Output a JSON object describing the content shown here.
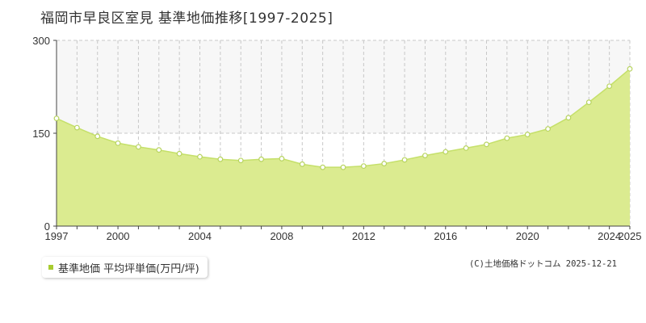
{
  "title": "福岡市早良区室見 基準地価推移[1997-2025]",
  "legend": {
    "label": "基準地価 平均坪単価(万円/坪)"
  },
  "credit": "(C)土地価格ドットコム 2025-12-21",
  "colors": {
    "fill": "#dbeb90",
    "line": "#c5e06a",
    "marker_fill": "#ffffff",
    "marker_stroke": "#b8d460",
    "legend_swatch": "#a8cc30",
    "grid": "#c8c8c8",
    "band": "#f7f7f7"
  },
  "chart_data": {
    "type": "area",
    "title": "",
    "xlabel": "",
    "ylabel": "",
    "ylim": [
      0,
      300
    ],
    "yticks": [
      0,
      150,
      300
    ],
    "xticks": [
      1997,
      2000,
      2004,
      2008,
      2012,
      2016,
      2020,
      2024,
      2025
    ],
    "grid": true,
    "legend_position": "bottom-left",
    "series": [
      {
        "name": "基準地価 平均坪単価(万円/坪)",
        "x": [
          1997,
          1998,
          1999,
          2000,
          2001,
          2002,
          2003,
          2004,
          2005,
          2006,
          2007,
          2008,
          2009,
          2010,
          2011,
          2012,
          2013,
          2014,
          2015,
          2016,
          2017,
          2018,
          2019,
          2020,
          2021,
          2022,
          2023,
          2024,
          2025
        ],
        "values": [
          174,
          159,
          145,
          134,
          128,
          123,
          117,
          112,
          108,
          106,
          108,
          109,
          100,
          95,
          95,
          97,
          101,
          107,
          114,
          120,
          126,
          132,
          142,
          148,
          157,
          175,
          200,
          226,
          254
        ]
      }
    ]
  }
}
